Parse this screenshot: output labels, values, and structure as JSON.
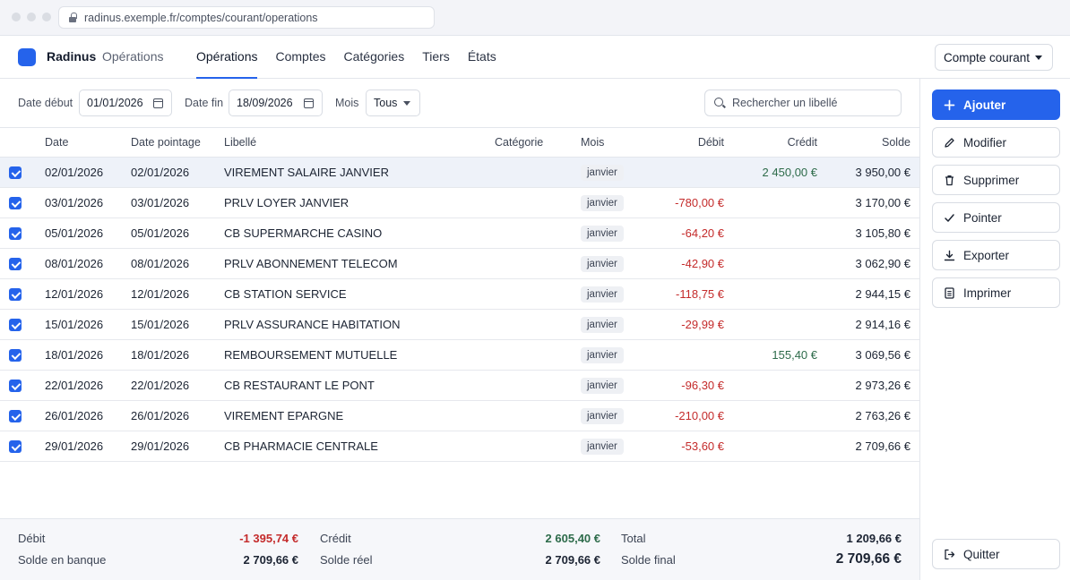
{
  "browser": {
    "url": "radinus.exemple.fr/comptes/courant/operations"
  },
  "header": {
    "brand": "Radinus",
    "section": "Opérations",
    "nav": [
      "Opérations",
      "Comptes",
      "Catégories",
      "Tiers",
      "États"
    ],
    "account_selector": "Compte courant"
  },
  "filters": {
    "date_debut_label": "Date début",
    "date_debut_value": "01/01/2026",
    "date_fin_label": "Date fin",
    "date_fin_value": "18/09/2026",
    "mois_label": "Mois",
    "mois_value": "Tous",
    "search_placeholder": "Rechercher un libellé"
  },
  "table": {
    "columns": [
      "Date",
      "Date pointage",
      "Libellé",
      "Catégorie",
      "Mois",
      "Débit",
      "Crédit",
      "Solde"
    ],
    "rows": [
      {
        "date": "02/01/2026",
        "pointage": "02/01/2026",
        "libelle": "VIREMENT SALAIRE JANVIER",
        "categorie": "",
        "mois": "janvier",
        "debit": "",
        "credit": "2 450,00 €",
        "solde": "3 950,00 €"
      },
      {
        "date": "03/01/2026",
        "pointage": "03/01/2026",
        "libelle": "PRLV LOYER JANVIER",
        "categorie": "",
        "mois": "janvier",
        "debit": "-780,00 €",
        "credit": "",
        "solde": "3 170,00 €"
      },
      {
        "date": "05/01/2026",
        "pointage": "05/01/2026",
        "libelle": "CB SUPERMARCHE CASINO",
        "categorie": "",
        "mois": "janvier",
        "debit": "-64,20 €",
        "credit": "",
        "solde": "3 105,80 €"
      },
      {
        "date": "08/01/2026",
        "pointage": "08/01/2026",
        "libelle": "PRLV ABONNEMENT TELECOM",
        "categorie": "",
        "mois": "janvier",
        "debit": "-42,90 €",
        "credit": "",
        "solde": "3 062,90 €"
      },
      {
        "date": "12/01/2026",
        "pointage": "12/01/2026",
        "libelle": "CB STATION SERVICE",
        "categorie": "",
        "mois": "janvier",
        "debit": "-118,75 €",
        "credit": "",
        "solde": "2 944,15 €"
      },
      {
        "date": "15/01/2026",
        "pointage": "15/01/2026",
        "libelle": "PRLV ASSURANCE HABITATION",
        "categorie": "",
        "mois": "janvier",
        "debit": "-29,99 €",
        "credit": "",
        "solde": "2 914,16 €"
      },
      {
        "date": "18/01/2026",
        "pointage": "18/01/2026",
        "libelle": "REMBOURSEMENT MUTUELLE",
        "categorie": "",
        "mois": "janvier",
        "debit": "",
        "credit": "155,40 €",
        "solde": "3 069,56 €"
      },
      {
        "date": "22/01/2026",
        "pointage": "22/01/2026",
        "libelle": "CB RESTAURANT LE PONT",
        "categorie": "",
        "mois": "janvier",
        "debit": "-96,30 €",
        "credit": "",
        "solde": "2 973,26 €"
      },
      {
        "date": "26/01/2026",
        "pointage": "26/01/2026",
        "libelle": "VIREMENT EPARGNE",
        "categorie": "",
        "mois": "janvier",
        "debit": "-210,00 €",
        "credit": "",
        "solde": "2 763,26 €"
      },
      {
        "date": "29/01/2026",
        "pointage": "29/01/2026",
        "libelle": "CB PHARMACIE CENTRALE",
        "categorie": "",
        "mois": "janvier",
        "debit": "-53,60 €",
        "credit": "",
        "solde": "2 709,66 €"
      }
    ]
  },
  "totals": {
    "debit_label": "Débit",
    "debit_value": "-1 395,74 €",
    "credit_label": "Crédit",
    "credit_value": "2 605,40 €",
    "total_label": "Total",
    "total_value": "1 209,66 €",
    "solde_banque_label": "Solde en banque",
    "solde_banque_value": "2 709,66 €",
    "solde_reel_label": "Solde réel",
    "solde_reel_value": "2 709,66 €",
    "solde_final_label": "Solde final",
    "solde_final_value": "2 709,66 €"
  },
  "actions": {
    "ajouter": "Ajouter",
    "modifier": "Modifier",
    "supprimer": "Supprimer",
    "pointer": "Pointer",
    "exporter": "Exporter",
    "imprimer": "Imprimer",
    "quitter": "Quitter"
  },
  "colors": {
    "accent": "#2563eb",
    "debit": "#c42b2b",
    "credit": "#2d6b4a"
  },
  "icons": [
    "lock-icon",
    "calendar-icon",
    "chevron-down-icon",
    "search-icon",
    "checkbox-checked-icon",
    "plus-icon",
    "pencil-icon",
    "trash-icon",
    "check-icon",
    "download-icon",
    "document-icon",
    "logout-icon"
  ]
}
